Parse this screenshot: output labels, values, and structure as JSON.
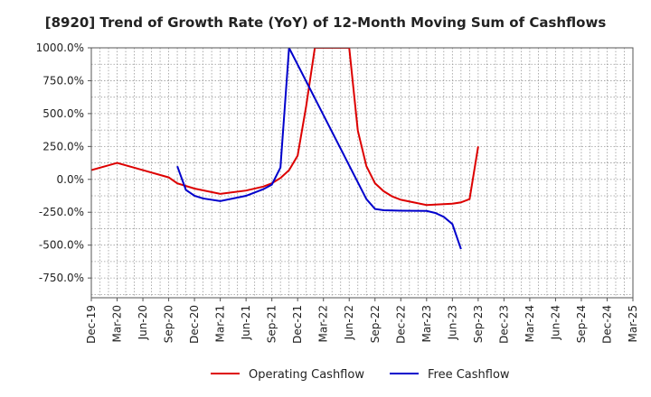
{
  "chart_data": {
    "type": "line",
    "title": "[8920]  Trend of Growth Rate (YoY) of 12-Month Moving Sum of Cashflows",
    "xlabel": "",
    "ylabel": "",
    "ylim": [
      -900,
      1000
    ],
    "y_ticks": [
      1000,
      750,
      500,
      250,
      0,
      -250,
      -500,
      -750
    ],
    "y_tick_labels": [
      "1000.0%",
      "750.0%",
      "500.0%",
      "250.0%",
      "0.0%",
      "-250.0%",
      "-500.0%",
      "-750.0%"
    ],
    "x_tick_labels": [
      "Dec-19",
      "Mar-20",
      "Jun-20",
      "Sep-20",
      "Dec-20",
      "Mar-21",
      "Jun-21",
      "Sep-21",
      "Dec-21",
      "Mar-22",
      "Jun-22",
      "Sep-22",
      "Dec-22",
      "Mar-23",
      "Jun-23",
      "Sep-23",
      "Dec-23",
      "Mar-24",
      "Jun-24",
      "Sep-24",
      "Dec-24",
      "Mar-25"
    ],
    "grid": true,
    "legend_position": "bottom",
    "series": [
      {
        "name": "Operating Cashflow",
        "color": "#dd0000",
        "points": [
          [
            "Dec-19",
            70
          ],
          [
            "Mar-20",
            125
          ],
          [
            "Jun-20",
            70
          ],
          [
            "Sep-20",
            15
          ],
          [
            "Oct-20",
            -30
          ],
          [
            "Dec-20",
            -70
          ],
          [
            "Mar-21",
            -110
          ],
          [
            "Jun-21",
            -85
          ],
          [
            "Aug-21",
            -55
          ],
          [
            "Sep-21",
            -30
          ],
          [
            "Oct-21",
            10
          ],
          [
            "Nov-21",
            70
          ],
          [
            "Dec-21",
            180
          ],
          [
            "Jan-22",
            560
          ],
          [
            "Feb-22",
            1000
          ],
          [
            "Jun-22",
            1000
          ],
          [
            "Jul-22",
            370
          ],
          [
            "Aug-22",
            100
          ],
          [
            "Sep-22",
            -30
          ],
          [
            "Oct-22",
            -90
          ],
          [
            "Nov-22",
            -130
          ],
          [
            "Dec-22",
            -155
          ],
          [
            "Mar-23",
            -195
          ],
          [
            "Jun-23",
            -185
          ],
          [
            "Jul-23",
            -175
          ],
          [
            "Aug-23",
            -150
          ],
          [
            "Sep-23",
            250
          ]
        ]
      },
      {
        "name": "Free Cashflow",
        "color": "#0000cc",
        "points": [
          [
            "Oct-20",
            100
          ],
          [
            "Nov-20",
            -80
          ],
          [
            "Dec-20",
            -125
          ],
          [
            "Jan-21",
            -145
          ],
          [
            "Mar-21",
            -165
          ],
          [
            "Jun-21",
            -125
          ],
          [
            "Aug-21",
            -75
          ],
          [
            "Sep-21",
            -40
          ],
          [
            "Oct-21",
            90
          ],
          [
            "Nov-21",
            1000
          ],
          [
            "Aug-22",
            -150
          ],
          [
            "Sep-22",
            -225
          ],
          [
            "Oct-22",
            -235
          ],
          [
            "Dec-22",
            -238
          ],
          [
            "Mar-23",
            -240
          ],
          [
            "Apr-23",
            -255
          ],
          [
            "May-23",
            -285
          ],
          [
            "Jun-23",
            -340
          ],
          [
            "Jul-23",
            -530
          ]
        ]
      }
    ]
  }
}
